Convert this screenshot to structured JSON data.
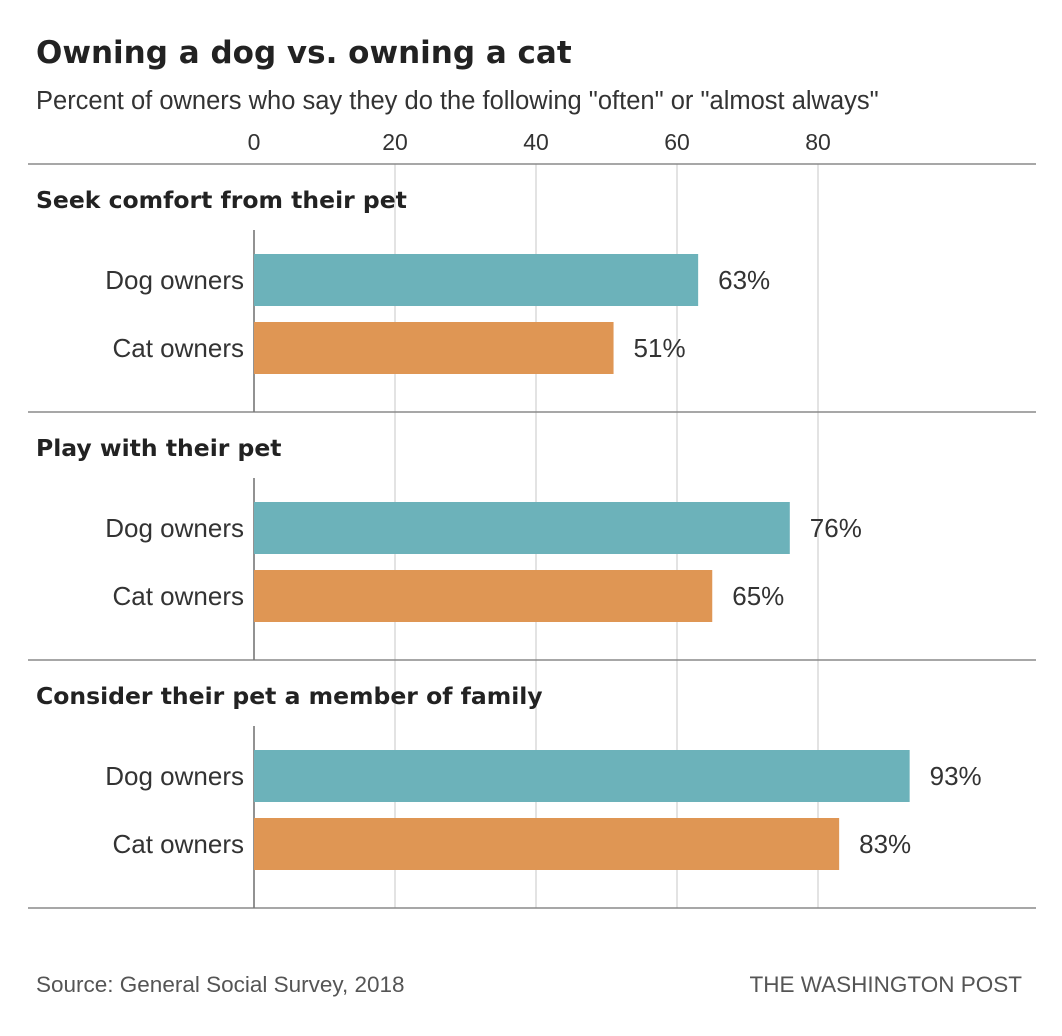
{
  "header": {
    "title": "Owning a dog vs. owning a cat",
    "subtitle": "Percent of owners who say they do the following \"often\" or \"almost always\""
  },
  "footer": {
    "source": "Source: General Social Survey, 2018",
    "credit": "THE WASHINGTON POST"
  },
  "chart_data": {
    "type": "bar",
    "orientation": "horizontal",
    "title": "Owning a dog vs. owning a cat",
    "subtitle": "Percent of owners who say they do the following \"often\" or \"almost always\"",
    "x_ticks": [
      0,
      20,
      40,
      60,
      80
    ],
    "x_tick_labels": [
      "0",
      "20",
      "40",
      "60",
      "80"
    ],
    "xlim": [
      0,
      100
    ],
    "grid": true,
    "legend": "none",
    "colors": {
      "Dog owners": "#6cb2ba",
      "Cat owners": "#df9654"
    },
    "groups": [
      {
        "name": "Seek comfort from their pet",
        "bars": [
          {
            "label": "Dog owners",
            "value": 63,
            "value_label": "63%"
          },
          {
            "label": "Cat owners",
            "value": 51,
            "value_label": "51%"
          }
        ]
      },
      {
        "name": "Play with their pet",
        "bars": [
          {
            "label": "Dog owners",
            "value": 76,
            "value_label": "76%"
          },
          {
            "label": "Cat owners",
            "value": 65,
            "value_label": "65%"
          }
        ]
      },
      {
        "name": "Consider their pet a member of family",
        "bars": [
          {
            "label": "Dog owners",
            "value": 93,
            "value_label": "93%"
          },
          {
            "label": "Cat owners",
            "value": 83,
            "value_label": "83%"
          }
        ]
      }
    ]
  }
}
